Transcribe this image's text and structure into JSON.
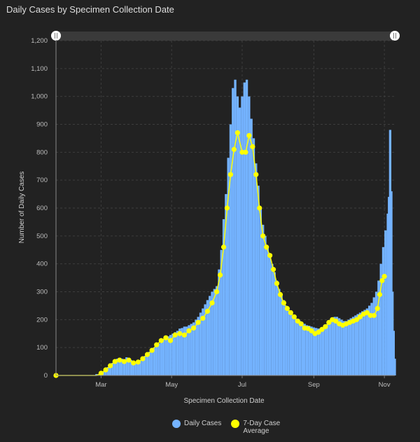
{
  "page": {
    "title": "Daily Cases by Specimen Collection Date"
  },
  "chart_data": {
    "type": "bar",
    "title": "Daily Cases by Specimen Collection Date",
    "xlabel": "Specimen Collection Date",
    "ylabel": "Number of Daily Cases",
    "ylim": [
      0,
      1200
    ],
    "yticks": [
      "0",
      "100",
      "200",
      "300",
      "400",
      "500",
      "600",
      "700",
      "800",
      "900",
      "1,000",
      "1,100",
      "1,200"
    ],
    "xticks": [
      "Mar",
      "May",
      "Jul",
      "Sep",
      "Nov"
    ],
    "x_range": [
      "2020-01-22",
      "2020-11-10"
    ],
    "grid": true,
    "legend_position": "bottom",
    "series": [
      {
        "name": "Daily Cases",
        "type": "bar",
        "color": "#74b3ff",
        "points": [
          [
            "2020-02-26",
            5
          ],
          [
            "2020-03-01",
            5
          ],
          [
            "2020-03-03",
            15
          ],
          [
            "2020-03-05",
            22
          ],
          [
            "2020-03-07",
            30
          ],
          [
            "2020-03-09",
            38
          ],
          [
            "2020-03-11",
            45
          ],
          [
            "2020-03-13",
            55
          ],
          [
            "2020-03-15",
            60
          ],
          [
            "2020-03-17",
            58
          ],
          [
            "2020-03-19",
            60
          ],
          [
            "2020-03-21",
            55
          ],
          [
            "2020-03-23",
            65
          ],
          [
            "2020-03-25",
            60
          ],
          [
            "2020-03-27",
            55
          ],
          [
            "2020-03-29",
            50
          ],
          [
            "2020-03-31",
            48
          ],
          [
            "2020-04-02",
            52
          ],
          [
            "2020-04-04",
            55
          ],
          [
            "2020-04-06",
            62
          ],
          [
            "2020-04-08",
            70
          ],
          [
            "2020-04-10",
            78
          ],
          [
            "2020-04-12",
            85
          ],
          [
            "2020-04-14",
            92
          ],
          [
            "2020-04-16",
            100
          ],
          [
            "2020-04-18",
            108
          ],
          [
            "2020-04-20",
            115
          ],
          [
            "2020-04-22",
            120
          ],
          [
            "2020-04-24",
            130
          ],
          [
            "2020-04-26",
            135
          ],
          [
            "2020-04-28",
            140
          ],
          [
            "2020-04-30",
            145
          ],
          [
            "2020-05-02",
            150
          ],
          [
            "2020-05-04",
            155
          ],
          [
            "2020-05-06",
            160
          ],
          [
            "2020-05-08",
            168
          ],
          [
            "2020-05-10",
            170
          ],
          [
            "2020-05-12",
            175
          ],
          [
            "2020-05-14",
            175
          ],
          [
            "2020-05-16",
            180
          ],
          [
            "2020-05-18",
            185
          ],
          [
            "2020-05-20",
            190
          ],
          [
            "2020-05-22",
            200
          ],
          [
            "2020-05-24",
            210
          ],
          [
            "2020-05-26",
            225
          ],
          [
            "2020-05-28",
            240
          ],
          [
            "2020-05-30",
            255
          ],
          [
            "2020-06-01",
            270
          ],
          [
            "2020-06-03",
            285
          ],
          [
            "2020-06-05",
            300
          ],
          [
            "2020-06-07",
            310
          ],
          [
            "2020-06-09",
            320
          ],
          [
            "2020-06-11",
            380
          ],
          [
            "2020-06-13",
            450
          ],
          [
            "2020-06-15",
            560
          ],
          [
            "2020-06-17",
            650
          ],
          [
            "2020-06-19",
            780
          ],
          [
            "2020-06-21",
            900
          ],
          [
            "2020-06-23",
            1030
          ],
          [
            "2020-06-25",
            1060
          ],
          [
            "2020-06-27",
            1000
          ],
          [
            "2020-06-29",
            960
          ],
          [
            "2020-07-01",
            1000
          ],
          [
            "2020-07-03",
            1050
          ],
          [
            "2020-07-05",
            1060
          ],
          [
            "2020-07-07",
            1000
          ],
          [
            "2020-07-09",
            920
          ],
          [
            "2020-07-11",
            850
          ],
          [
            "2020-07-13",
            760
          ],
          [
            "2020-07-15",
            680
          ],
          [
            "2020-07-17",
            600
          ],
          [
            "2020-07-19",
            540
          ],
          [
            "2020-07-21",
            500
          ],
          [
            "2020-07-23",
            460
          ],
          [
            "2020-07-25",
            430
          ],
          [
            "2020-07-27",
            400
          ],
          [
            "2020-07-29",
            370
          ],
          [
            "2020-07-31",
            340
          ],
          [
            "2020-08-02",
            310
          ],
          [
            "2020-08-04",
            290
          ],
          [
            "2020-08-06",
            270
          ],
          [
            "2020-08-08",
            250
          ],
          [
            "2020-08-10",
            235
          ],
          [
            "2020-08-12",
            225
          ],
          [
            "2020-08-14",
            215
          ],
          [
            "2020-08-16",
            205
          ],
          [
            "2020-08-18",
            200
          ],
          [
            "2020-08-20",
            195
          ],
          [
            "2020-08-22",
            190
          ],
          [
            "2020-08-24",
            185
          ],
          [
            "2020-08-26",
            180
          ],
          [
            "2020-08-28",
            178
          ],
          [
            "2020-08-30",
            175
          ],
          [
            "2020-09-01",
            172
          ],
          [
            "2020-09-03",
            170
          ],
          [
            "2020-09-05",
            168
          ],
          [
            "2020-09-07",
            168
          ],
          [
            "2020-09-09",
            170
          ],
          [
            "2020-09-11",
            175
          ],
          [
            "2020-09-13",
            185
          ],
          [
            "2020-09-15",
            195
          ],
          [
            "2020-09-17",
            205
          ],
          [
            "2020-09-19",
            210
          ],
          [
            "2020-09-21",
            210
          ],
          [
            "2020-09-23",
            205
          ],
          [
            "2020-09-25",
            200
          ],
          [
            "2020-09-27",
            195
          ],
          [
            "2020-09-29",
            195
          ],
          [
            "2020-10-01",
            200
          ],
          [
            "2020-10-03",
            205
          ],
          [
            "2020-10-05",
            210
          ],
          [
            "2020-10-07",
            215
          ],
          [
            "2020-10-09",
            220
          ],
          [
            "2020-10-11",
            225
          ],
          [
            "2020-10-13",
            230
          ],
          [
            "2020-10-15",
            235
          ],
          [
            "2020-10-17",
            240
          ],
          [
            "2020-10-19",
            250
          ],
          [
            "2020-10-21",
            260
          ],
          [
            "2020-10-23",
            280
          ],
          [
            "2020-10-25",
            300
          ],
          [
            "2020-10-27",
            340
          ],
          [
            "2020-10-29",
            400
          ],
          [
            "2020-10-31",
            460
          ],
          [
            "2020-11-02",
            520
          ],
          [
            "2020-11-04",
            580
          ],
          [
            "2020-11-05",
            640
          ],
          [
            "2020-11-06",
            880
          ],
          [
            "2020-11-07",
            660
          ],
          [
            "2020-11-08",
            300
          ],
          [
            "2020-11-09",
            160
          ],
          [
            "2020-11-10",
            60
          ]
        ]
      },
      {
        "name": "7-Day Case Average",
        "type": "line",
        "color": "#ffff00",
        "points": [
          [
            "2020-01-22",
            0
          ],
          [
            "2020-02-26",
            0
          ],
          [
            "2020-03-01",
            8
          ],
          [
            "2020-03-05",
            20
          ],
          [
            "2020-03-09",
            35
          ],
          [
            "2020-03-13",
            50
          ],
          [
            "2020-03-17",
            55
          ],
          [
            "2020-03-21",
            50
          ],
          [
            "2020-03-25",
            55
          ],
          [
            "2020-03-29",
            45
          ],
          [
            "2020-04-02",
            48
          ],
          [
            "2020-04-06",
            60
          ],
          [
            "2020-04-10",
            75
          ],
          [
            "2020-04-14",
            90
          ],
          [
            "2020-04-18",
            110
          ],
          [
            "2020-04-22",
            125
          ],
          [
            "2020-04-26",
            135
          ],
          [
            "2020-04-30",
            125
          ],
          [
            "2020-05-04",
            145
          ],
          [
            "2020-05-08",
            150
          ],
          [
            "2020-05-12",
            145
          ],
          [
            "2020-05-16",
            160
          ],
          [
            "2020-05-20",
            170
          ],
          [
            "2020-05-24",
            190
          ],
          [
            "2020-05-28",
            205
          ],
          [
            "2020-06-01",
            230
          ],
          [
            "2020-06-05",
            260
          ],
          [
            "2020-06-09",
            300
          ],
          [
            "2020-06-12",
            360
          ],
          [
            "2020-06-15",
            460
          ],
          [
            "2020-06-18",
            600
          ],
          [
            "2020-06-21",
            720
          ],
          [
            "2020-06-24",
            810
          ],
          [
            "2020-06-27",
            870
          ],
          [
            "2020-07-01",
            800
          ],
          [
            "2020-07-04",
            800
          ],
          [
            "2020-07-07",
            860
          ],
          [
            "2020-07-10",
            820
          ],
          [
            "2020-07-13",
            720
          ],
          [
            "2020-07-16",
            600
          ],
          [
            "2020-07-19",
            500
          ],
          [
            "2020-07-22",
            460
          ],
          [
            "2020-07-25",
            430
          ],
          [
            "2020-07-28",
            380
          ],
          [
            "2020-07-31",
            330
          ],
          [
            "2020-08-03",
            290
          ],
          [
            "2020-08-06",
            260
          ],
          [
            "2020-08-09",
            240
          ],
          [
            "2020-08-12",
            225
          ],
          [
            "2020-08-15",
            210
          ],
          [
            "2020-08-18",
            195
          ],
          [
            "2020-08-21",
            185
          ],
          [
            "2020-08-24",
            170
          ],
          [
            "2020-08-27",
            168
          ],
          [
            "2020-08-30",
            160
          ],
          [
            "2020-09-02",
            150
          ],
          [
            "2020-09-05",
            155
          ],
          [
            "2020-09-08",
            165
          ],
          [
            "2020-09-11",
            175
          ],
          [
            "2020-09-14",
            190
          ],
          [
            "2020-09-17",
            200
          ],
          [
            "2020-09-20",
            195
          ],
          [
            "2020-09-23",
            185
          ],
          [
            "2020-09-26",
            180
          ],
          [
            "2020-09-29",
            185
          ],
          [
            "2020-10-02",
            190
          ],
          [
            "2020-10-05",
            195
          ],
          [
            "2020-10-08",
            200
          ],
          [
            "2020-10-11",
            210
          ],
          [
            "2020-10-14",
            220
          ],
          [
            "2020-10-17",
            225
          ],
          [
            "2020-10-20",
            215
          ],
          [
            "2020-10-23",
            215
          ],
          [
            "2020-10-26",
            240
          ],
          [
            "2020-10-28",
            290
          ],
          [
            "2020-10-30",
            340
          ],
          [
            "2020-11-01",
            355
          ]
        ]
      }
    ]
  }
}
